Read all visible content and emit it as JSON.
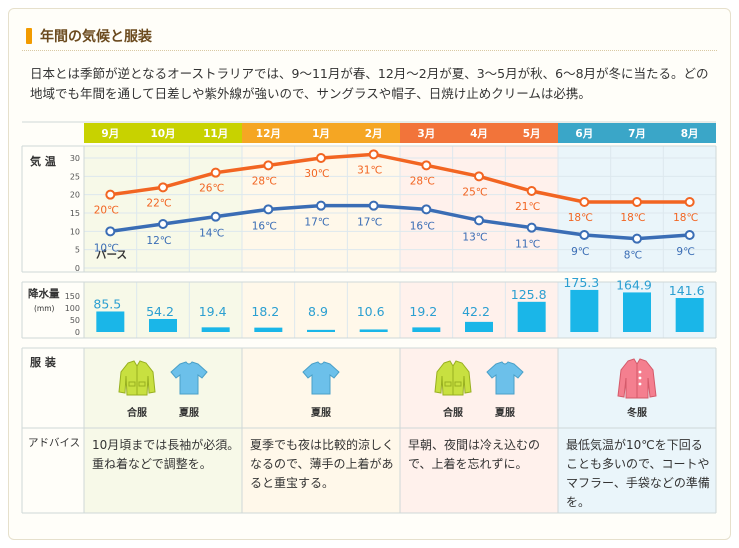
{
  "title": "年間の気候と服装",
  "intro": "日本とは季節が逆となるオーストラリアでは、9～11月が春、12月～2月が夏、3～5月が秋、6～8月が冬に当たる。どの地域でも年間を通して日差しや紫外線が強いので、サングラスや帽子、日焼け止めクリームは必携。",
  "row_labels": {
    "temp": "気 温",
    "rain": "降水量",
    "rain_unit": "(mm)",
    "clothing": "服 装",
    "advice": "アドバイス"
  },
  "city_label": "パース",
  "seasons": [
    {
      "name": "spring",
      "color": "#c8d200",
      "bg": "#f7f9e8"
    },
    {
      "name": "summer",
      "color": "#f5a623",
      "bg": "#fff8ea"
    },
    {
      "name": "autumn",
      "color": "#f2743a",
      "bg": "#fff1ec"
    },
    {
      "name": "winter",
      "color": "#3aa6c8",
      "bg": "#eaf5fa"
    }
  ],
  "chart_data": {
    "type": "line",
    "categories": [
      "9月",
      "10月",
      "11月",
      "12月",
      "1月",
      "2月",
      "3月",
      "4月",
      "5月",
      "6月",
      "7月",
      "8月"
    ],
    "temperature": {
      "ylim": [
        0,
        30
      ],
      "yticks": [
        "0",
        "5",
        "10",
        "15",
        "20",
        "25",
        "30"
      ],
      "series": [
        {
          "values": [
            20,
            22,
            26,
            28,
            30,
            31,
            28,
            25,
            21,
            18,
            18,
            18
          ],
          "labels": [
            "20℃",
            "22℃",
            "26℃",
            "28℃",
            "30℃",
            "31℃",
            "28℃",
            "25℃",
            "21℃",
            "18℃",
            "18℃",
            "18℃"
          ],
          "color": "#f26522"
        },
        {
          "values": [
            10,
            12,
            14,
            16,
            17,
            17,
            16,
            13,
            11,
            9,
            8,
            9
          ],
          "labels": [
            "10℃",
            "12℃",
            "14℃",
            "16℃",
            "17℃",
            "17℃",
            "16℃",
            "13℃",
            "11℃",
            "9℃",
            "8℃",
            "9℃"
          ],
          "color": "#3a6db5"
        }
      ]
    },
    "precipitation": {
      "type": "bar",
      "ylim": [
        0,
        175
      ],
      "yticks": [
        "0",
        "50",
        "100",
        "150"
      ],
      "values": [
        85.5,
        54.2,
        19.4,
        18.2,
        8.9,
        10.6,
        19.2,
        42.2,
        125.8,
        175.3,
        164.9,
        141.6
      ],
      "labels": [
        "85.5",
        "54.2",
        "19.4",
        "18.2",
        "8.9",
        "10.6",
        "19.2",
        "42.2",
        "125.8",
        "175.3",
        "164.9",
        "141.6"
      ],
      "color": "#1ab6e8"
    }
  },
  "clothing": [
    {
      "items": [
        {
          "label": "合服",
          "icon": "jacket-icon",
          "color": "#c8e040"
        },
        {
          "label": "夏服",
          "icon": "tshirt-icon",
          "color": "#6cc0ea"
        }
      ]
    },
    {
      "items": [
        {
          "label": "夏服",
          "icon": "tshirt-icon",
          "color": "#6cc0ea"
        }
      ]
    },
    {
      "items": [
        {
          "label": "合服",
          "icon": "jacket-icon",
          "color": "#c8e040"
        },
        {
          "label": "夏服",
          "icon": "tshirt-icon",
          "color": "#6cc0ea"
        }
      ]
    },
    {
      "items": [
        {
          "label": "冬服",
          "icon": "coat-icon",
          "color": "#f47f8f"
        }
      ]
    }
  ],
  "advice": [
    "10月頃までは長袖が必須。重ね着などで調整を。",
    "夏季でも夜は比較的涼しくなるので、薄手の上着があると重宝する。",
    "早朝、夜間は冷え込むので、上着を忘れずに。",
    "最低気温が10℃を下回ることも多いので、コートやマフラー、手袋などの準備を。"
  ]
}
